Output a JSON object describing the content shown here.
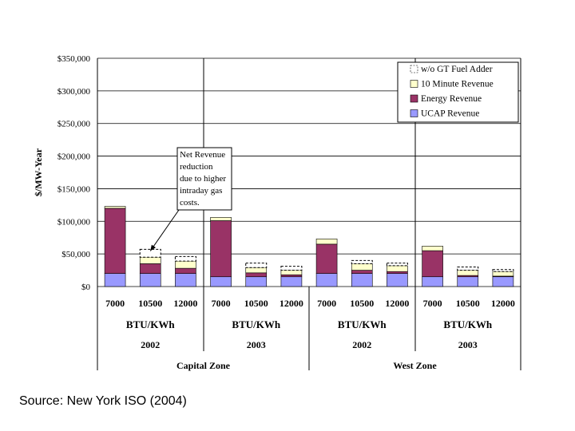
{
  "source_caption": "Source: New York ISO (2004)",
  "chart_data": {
    "type": "bar",
    "stacked": true,
    "ylabel": "$/MW-Year",
    "ylim": [
      0,
      350000
    ],
    "y_ticks": [
      "$0",
      "$50,000",
      "$100,000",
      "$150,000",
      "$200,000",
      "$250,000",
      "$300,000",
      "$350,000"
    ],
    "y_tick_values": [
      0,
      50000,
      100000,
      150000,
      200000,
      250000,
      300000,
      350000
    ],
    "grid": true,
    "legend_position": "top-right",
    "categories": [
      "7000",
      "10500",
      "12000",
      "7000",
      "10500",
      "12000",
      "7000",
      "10500",
      "12000",
      "7000",
      "10500",
      "12000"
    ],
    "unit_labels": [
      "BTU/KWh",
      "BTU/KWh",
      "BTU/KWh",
      "BTU/KWh"
    ],
    "year_labels": [
      "2002",
      "2003",
      "2002",
      "2003"
    ],
    "zone_labels": [
      "Capital Zone",
      "West Zone"
    ],
    "series": [
      {
        "name": "UCAP Revenue",
        "color": "#9999ff",
        "values": [
          20000,
          20000,
          20000,
          15000,
          15000,
          15000,
          20000,
          20000,
          20000,
          15000,
          15000,
          15000
        ]
      },
      {
        "name": "Energy Revenue",
        "color": "#993366",
        "values": [
          100000,
          15000,
          8000,
          86000,
          6000,
          3000,
          45000,
          5000,
          3000,
          40000,
          2000,
          1000
        ]
      },
      {
        "name": "10 Minute Revenue",
        "color": "#ffffcc",
        "values": [
          3000,
          10000,
          11000,
          5000,
          8000,
          7000,
          8000,
          10000,
          9000,
          7000,
          8000,
          7000
        ]
      },
      {
        "name": "w/o GT Fuel Adder",
        "color": "#ffffff",
        "dashed": true,
        "values": [
          0,
          12000,
          7000,
          0,
          7000,
          6000,
          0,
          5000,
          4000,
          0,
          5000,
          3000
        ]
      }
    ],
    "legend_entries": [
      "w/o GT Fuel Adder",
      "10 Minute Revenue",
      "Energy Revenue",
      "UCAP Revenue"
    ],
    "annotation": {
      "lines": [
        "Net Revenue",
        "reduction",
        "due to higher",
        "intraday gas",
        "costs."
      ],
      "target_index": 1
    }
  }
}
